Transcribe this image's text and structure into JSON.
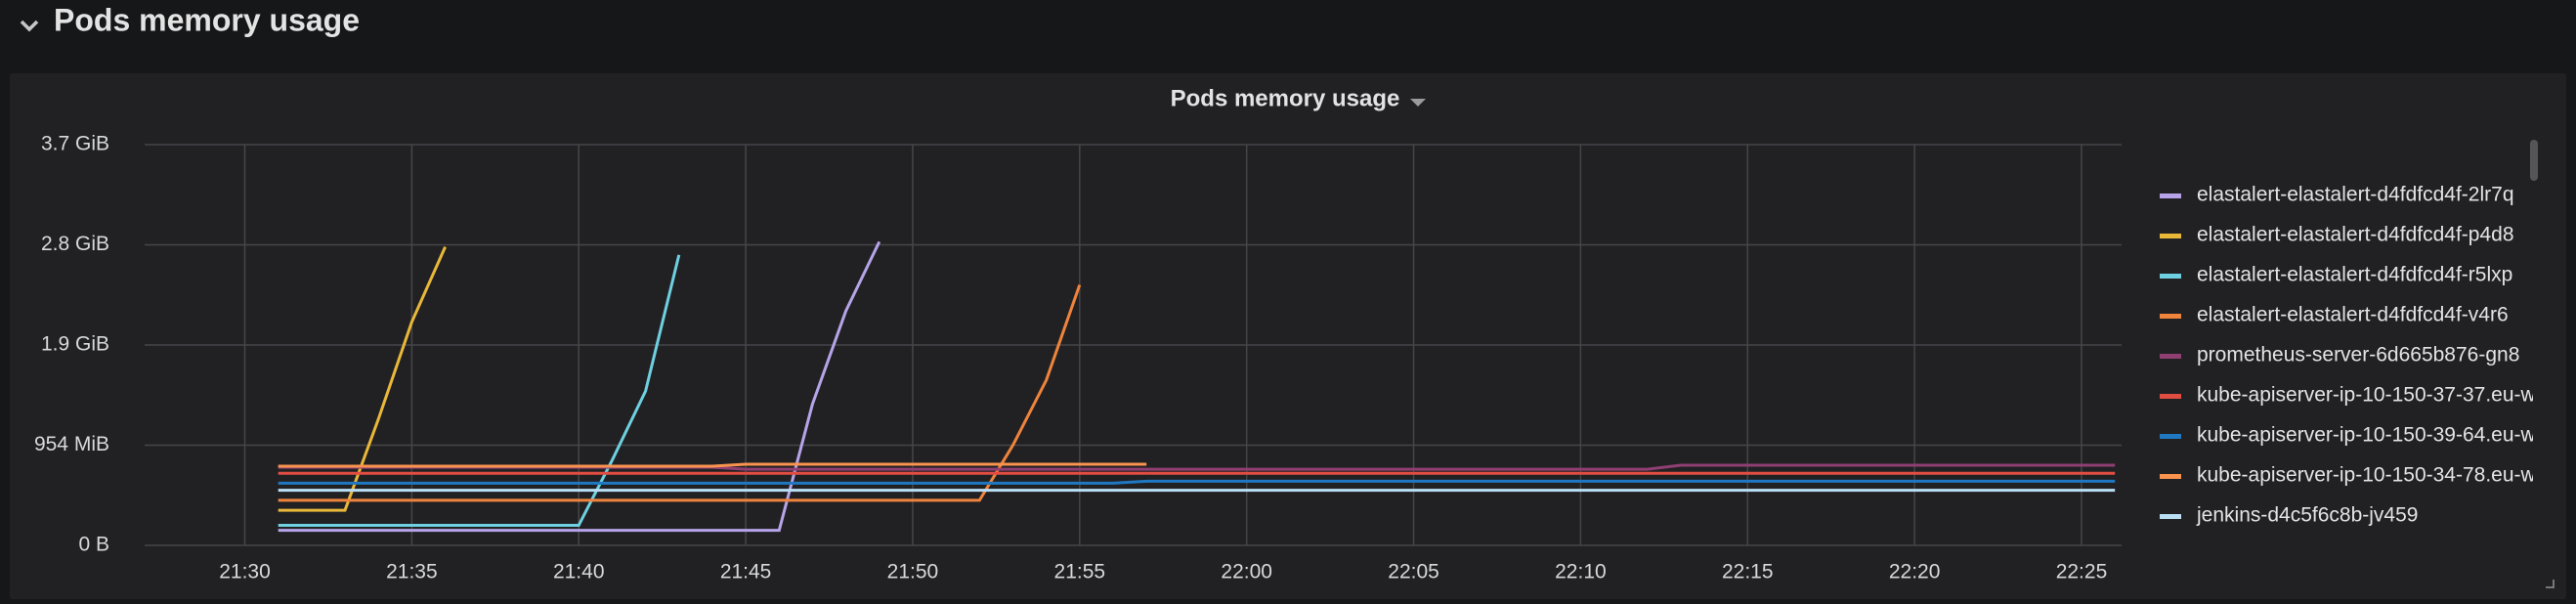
{
  "row_title": "Pods memory usage",
  "chart_data": {
    "type": "line",
    "title": "Pods memory usage",
    "grid": true,
    "legend_position": "right",
    "x": [
      "21:27",
      "21:28",
      "21:29",
      "21:30",
      "21:31",
      "21:32",
      "21:33",
      "21:34",
      "21:35",
      "21:36",
      "21:37",
      "21:38",
      "21:39",
      "21:40",
      "21:41",
      "21:42",
      "21:43",
      "21:44",
      "21:45",
      "21:46",
      "21:47",
      "21:48",
      "21:49",
      "21:50",
      "21:51",
      "21:52",
      "21:53",
      "21:54",
      "21:55",
      "21:56",
      "21:57",
      "21:58",
      "21:59",
      "22:00",
      "22:01",
      "22:02",
      "22:03",
      "22:04",
      "22:05",
      "22:06",
      "22:07",
      "22:08",
      "22:09",
      "22:10",
      "22:11",
      "22:12",
      "22:13",
      "22:14",
      "22:15",
      "22:16",
      "22:17",
      "22:18",
      "22:19",
      "22:20",
      "22:21",
      "22:22",
      "22:23",
      "22:24",
      "22:25",
      "22:26"
    ],
    "ylim": [
      0,
      4000000000
    ],
    "yticks": [
      {
        "value": 0,
        "label": "0 B"
      },
      {
        "value": 1000000000,
        "label": "954 MiB"
      },
      {
        "value": 2000000000,
        "label": "1.9 GiB"
      },
      {
        "value": 3000000000,
        "label": "2.8 GiB"
      },
      {
        "value": 4000000000,
        "label": "3.7 GiB"
      }
    ],
    "series": [
      {
        "name": "elastalert-elastalert-d4fdfcd4f-2lr7q",
        "color": "#b7a4e8",
        "values": [
          null,
          null,
          null,
          null,
          150000000.0,
          150000000.0,
          150000000.0,
          150000000.0,
          150000000.0,
          150000000.0,
          150000000.0,
          150000000.0,
          150000000.0,
          150000000.0,
          150000000.0,
          150000000.0,
          150000000.0,
          150000000.0,
          150000000.0,
          150000000.0,
          1410000000.0,
          2340000000.0,
          3030000000.0,
          null,
          null,
          null,
          null,
          null,
          null,
          null,
          null,
          null,
          null,
          null,
          null,
          null,
          null,
          null,
          null,
          null,
          null,
          null,
          null,
          null,
          null,
          null,
          null,
          null,
          null,
          null,
          null,
          null,
          null,
          null,
          null,
          null,
          null,
          null,
          null,
          null
        ]
      },
      {
        "name": "elastalert-elastalert-d4fdfcd4f-p4d8",
        "color": "#eab839",
        "values": [
          null,
          null,
          null,
          null,
          350000000.0,
          350000000.0,
          350000000.0,
          1260000000.0,
          2230000000.0,
          2980000000.0,
          null,
          null,
          null,
          null,
          null,
          null,
          null,
          null,
          null,
          null,
          null,
          null,
          null,
          null,
          null,
          null,
          null,
          null,
          null,
          null,
          null,
          null,
          null,
          null,
          null,
          null,
          null,
          null,
          null,
          null,
          null,
          null,
          null,
          null,
          null,
          null,
          null,
          null,
          null,
          null,
          null,
          null,
          null,
          null,
          null,
          null,
          null,
          null,
          null,
          null
        ]
      },
      {
        "name": "elastalert-elastalert-d4fdfcd4f-r5lxp",
        "color": "#6ed0e0",
        "values": [
          null,
          null,
          null,
          null,
          200000000.0,
          200000000.0,
          200000000.0,
          200000000.0,
          200000000.0,
          200000000.0,
          200000000.0,
          200000000.0,
          200000000.0,
          200000000.0,
          850000000.0,
          1540000000.0,
          2900000000.0,
          null,
          null,
          null,
          null,
          null,
          null,
          null,
          null,
          null,
          null,
          null,
          null,
          null,
          null,
          null,
          null,
          null,
          null,
          null,
          null,
          null,
          null,
          null,
          null,
          null,
          null,
          null,
          null,
          null,
          null,
          null,
          null,
          null,
          null,
          null,
          null,
          null,
          null,
          null,
          null,
          null,
          null,
          null
        ]
      },
      {
        "name": "elastalert-elastalert-d4fdfcd4f-v4r6",
        "color": "#ef843c",
        "values": [
          null,
          null,
          null,
          null,
          450000000.0,
          450000000.0,
          450000000.0,
          450000000.0,
          450000000.0,
          450000000.0,
          450000000.0,
          450000000.0,
          450000000.0,
          450000000.0,
          450000000.0,
          450000000.0,
          450000000.0,
          450000000.0,
          450000000.0,
          450000000.0,
          450000000.0,
          450000000.0,
          450000000.0,
          450000000.0,
          450000000.0,
          450000000.0,
          1000000000.0,
          1650000000.0,
          2600000000.0,
          null,
          null,
          null,
          null,
          null,
          null,
          null,
          null,
          null,
          null,
          null,
          null,
          null,
          null,
          null,
          null,
          null,
          null,
          null,
          null,
          null,
          null,
          null,
          null,
          null,
          null,
          null,
          null,
          null,
          null,
          null
        ]
      },
      {
        "name": "prometheus-server-6d665b876-gn8",
        "color": "#8f3f71",
        "values": [
          null,
          null,
          null,
          null,
          780000000.0,
          780000000.0,
          780000000.0,
          780000000.0,
          780000000.0,
          780000000.0,
          780000000.0,
          780000000.0,
          780000000.0,
          780000000.0,
          780000000.0,
          780000000.0,
          780000000.0,
          780000000.0,
          760000000.0,
          760000000.0,
          760000000.0,
          760000000.0,
          760000000.0,
          760000000.0,
          760000000.0,
          760000000.0,
          760000000.0,
          760000000.0,
          760000000.0,
          760000000.0,
          760000000.0,
          760000000.0,
          760000000.0,
          760000000.0,
          760000000.0,
          760000000.0,
          760000000.0,
          760000000.0,
          760000000.0,
          760000000.0,
          760000000.0,
          760000000.0,
          760000000.0,
          760000000.0,
          760000000.0,
          760000000.0,
          800000000.0,
          800000000.0,
          800000000.0,
          800000000.0,
          800000000.0,
          800000000.0,
          800000000.0,
          800000000.0,
          800000000.0,
          800000000.0,
          800000000.0,
          800000000.0,
          800000000.0,
          800000000.0
        ]
      },
      {
        "name": "kube-apiserver-ip-10-150-37-37.eu-w",
        "color": "#e24d42",
        "values": [
          null,
          null,
          null,
          null,
          720000000.0,
          720000000.0,
          720000000.0,
          720000000.0,
          720000000.0,
          720000000.0,
          720000000.0,
          720000000.0,
          720000000.0,
          720000000.0,
          720000000.0,
          720000000.0,
          720000000.0,
          720000000.0,
          720000000.0,
          720000000.0,
          720000000.0,
          720000000.0,
          720000000.0,
          720000000.0,
          720000000.0,
          720000000.0,
          720000000.0,
          720000000.0,
          720000000.0,
          720000000.0,
          720000000.0,
          720000000.0,
          720000000.0,
          720000000.0,
          720000000.0,
          720000000.0,
          720000000.0,
          720000000.0,
          720000000.0,
          720000000.0,
          720000000.0,
          720000000.0,
          720000000.0,
          720000000.0,
          720000000.0,
          720000000.0,
          720000000.0,
          720000000.0,
          720000000.0,
          720000000.0,
          720000000.0,
          720000000.0,
          720000000.0,
          720000000.0,
          720000000.0,
          720000000.0,
          720000000.0,
          720000000.0,
          720000000.0,
          720000000.0
        ]
      },
      {
        "name": "kube-apiserver-ip-10-150-39-64.eu-w",
        "color": "#1f78c1",
        "values": [
          null,
          null,
          null,
          null,
          620000000.0,
          620000000.0,
          620000000.0,
          620000000.0,
          620000000.0,
          620000000.0,
          620000000.0,
          620000000.0,
          620000000.0,
          620000000.0,
          620000000.0,
          620000000.0,
          620000000.0,
          620000000.0,
          620000000.0,
          620000000.0,
          620000000.0,
          620000000.0,
          620000000.0,
          620000000.0,
          620000000.0,
          620000000.0,
          620000000.0,
          620000000.0,
          620000000.0,
          620000000.0,
          640000000.0,
          640000000.0,
          640000000.0,
          640000000.0,
          640000000.0,
          640000000.0,
          640000000.0,
          640000000.0,
          640000000.0,
          640000000.0,
          640000000.0,
          640000000.0,
          640000000.0,
          640000000.0,
          640000000.0,
          640000000.0,
          640000000.0,
          640000000.0,
          640000000.0,
          640000000.0,
          640000000.0,
          640000000.0,
          640000000.0,
          640000000.0,
          640000000.0,
          640000000.0,
          640000000.0,
          640000000.0,
          640000000.0,
          640000000.0
        ]
      },
      {
        "name": "kube-apiserver-ip-10-150-34-78.eu-w",
        "color": "#f9934e",
        "values": [
          null,
          null,
          null,
          null,
          790000000.0,
          790000000.0,
          790000000.0,
          790000000.0,
          790000000.0,
          790000000.0,
          790000000.0,
          790000000.0,
          790000000.0,
          790000000.0,
          790000000.0,
          790000000.0,
          790000000.0,
          790000000.0,
          810000000.0,
          810000000.0,
          810000000.0,
          810000000.0,
          810000000.0,
          810000000.0,
          810000000.0,
          810000000.0,
          810000000.0,
          810000000.0,
          810000000.0,
          810000000.0,
          810000000.0,
          null,
          null,
          null,
          null,
          null,
          null,
          null,
          null,
          null,
          null,
          null,
          null,
          null,
          null,
          null,
          null,
          null,
          null,
          null,
          null,
          null,
          null,
          null,
          null,
          null,
          null,
          null,
          null,
          null
        ]
      },
      {
        "name": "jenkins-d4c5f6c8b-jv459",
        "color": "#badff4",
        "values": [
          null,
          null,
          null,
          null,
          550000000.0,
          550000000.0,
          550000000.0,
          550000000.0,
          550000000.0,
          550000000.0,
          550000000.0,
          550000000.0,
          550000000.0,
          550000000.0,
          550000000.0,
          550000000.0,
          550000000.0,
          550000000.0,
          550000000.0,
          550000000.0,
          550000000.0,
          550000000.0,
          550000000.0,
          550000000.0,
          550000000.0,
          550000000.0,
          550000000.0,
          550000000.0,
          550000000.0,
          550000000.0,
          550000000.0,
          550000000.0,
          550000000.0,
          550000000.0,
          550000000.0,
          550000000.0,
          550000000.0,
          550000000.0,
          550000000.0,
          550000000.0,
          550000000.0,
          550000000.0,
          550000000.0,
          550000000.0,
          550000000.0,
          550000000.0,
          550000000.0,
          550000000.0,
          550000000.0,
          550000000.0,
          550000000.0,
          550000000.0,
          550000000.0,
          550000000.0,
          550000000.0,
          550000000.0,
          550000000.0,
          550000000.0,
          550000000.0,
          550000000.0
        ]
      }
    ]
  }
}
